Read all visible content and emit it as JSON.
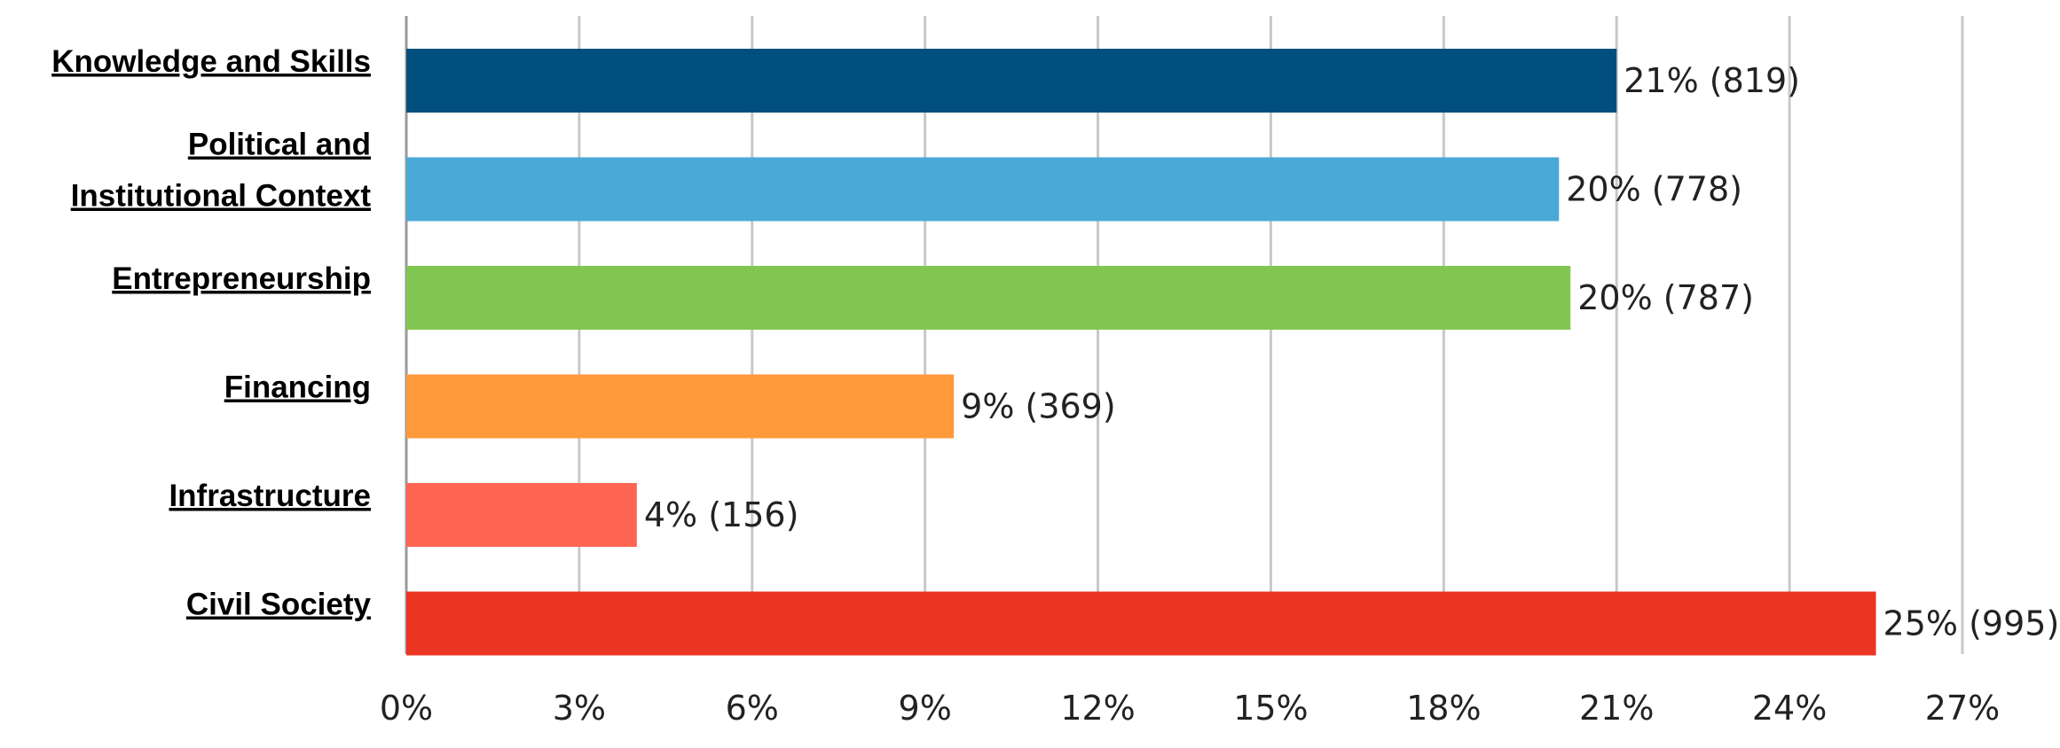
{
  "chart_data": {
    "type": "bar",
    "orientation": "horizontal",
    "title": "",
    "xlabel": "",
    "ylabel": "",
    "xlim": [
      0,
      27
    ],
    "x_ticks": [
      "0%",
      "3%",
      "6%",
      "9%",
      "12%",
      "15%",
      "18%",
      "21%",
      "24%",
      "27%"
    ],
    "grid": true,
    "legend": "none",
    "categories": [
      [
        "Knowledge and Skills"
      ],
      [
        "Political and",
        "Institutional Context"
      ],
      [
        "Entrepreneurship"
      ],
      [
        "Financing"
      ],
      [
        "Infrastructure"
      ],
      [
        "Civil Society"
      ]
    ],
    "values": [
      21.0,
      20.0,
      20.2,
      9.5,
      4.0,
      25.5
    ],
    "data_labels": [
      "21% (819)",
      "20% (778)",
      "20% (787)",
      "9% (369)",
      "4% (156)",
      "25% (995)"
    ],
    "colors": [
      "#004f7c",
      "#4aa9d6",
      "#82c652",
      "#ff993a",
      "#ff6553",
      "#ec3423"
    ]
  }
}
